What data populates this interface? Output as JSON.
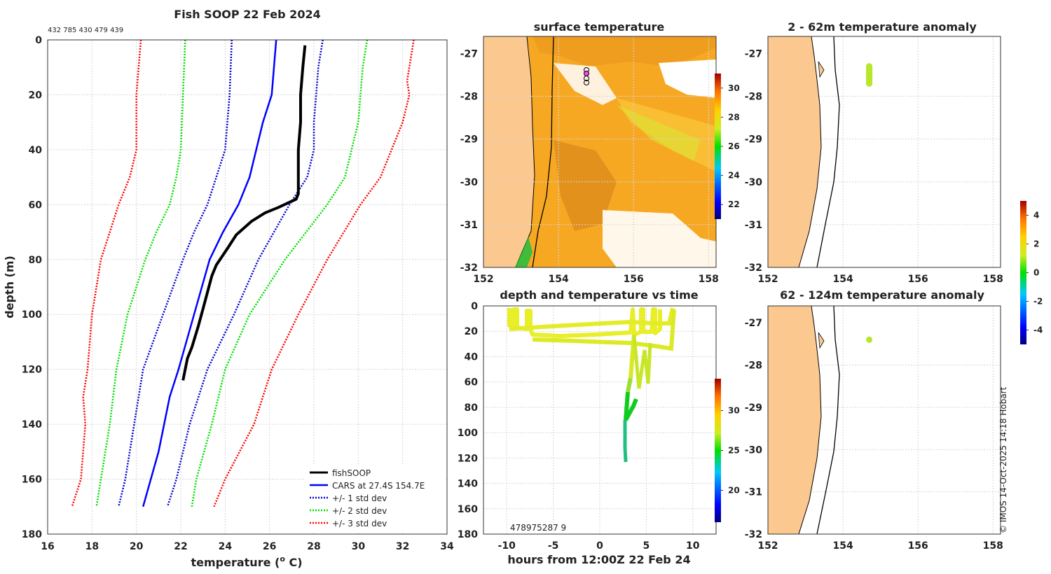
{
  "chart_data": [
    {
      "id": "profile",
      "type": "line",
      "title": "Fish SOOP 22 Feb 2024",
      "header_ids": "432 785 430 479 439",
      "xlabel": "temperature (",
      "xlabel_sup": "o",
      "xlabel_tail": " C)",
      "ylabel": "depth (m)",
      "xlim": [
        16,
        34
      ],
      "ylim": [
        180,
        0
      ],
      "xticks": [
        16,
        18,
        20,
        22,
        24,
        26,
        28,
        30,
        32,
        34
      ],
      "yticks": [
        0,
        20,
        40,
        60,
        80,
        100,
        120,
        140,
        160,
        180
      ],
      "series": [
        {
          "name": "+/- 3 std dev",
          "color": "#ff0000",
          "dash": true,
          "pts": [
            [
              20.2,
              0
            ],
            [
              20.0,
              20
            ],
            [
              20.0,
              40
            ],
            [
              19.7,
              50
            ],
            [
              19.2,
              60
            ],
            [
              18.8,
              70
            ],
            [
              18.4,
              80
            ],
            [
              18.0,
              100
            ],
            [
              17.8,
              120
            ],
            [
              17.6,
              130
            ],
            [
              17.7,
              140
            ],
            [
              17.5,
              160
            ],
            [
              17.1,
              170
            ]
          ]
        },
        {
          "name": "+/- 3 std dev",
          "color": "#ff0000",
          "dash": true,
          "pts": [
            [
              32.5,
              0
            ],
            [
              32.2,
              15
            ],
            [
              32.3,
              20
            ],
            [
              32.0,
              30
            ],
            [
              31.0,
              50
            ],
            [
              30.1,
              60
            ],
            [
              28.6,
              80
            ],
            [
              27.3,
              100
            ],
            [
              26.1,
              120
            ],
            [
              25.3,
              140
            ],
            [
              24.0,
              160
            ],
            [
              23.5,
              170
            ]
          ]
        },
        {
          "name": "+/- 2 std dev",
          "color": "#00dd00",
          "dash": true,
          "pts": [
            [
              22.2,
              0
            ],
            [
              22.1,
              20
            ],
            [
              22.0,
              40
            ],
            [
              21.8,
              50
            ],
            [
              21.5,
              60
            ],
            [
              20.9,
              70
            ],
            [
              20.4,
              80
            ],
            [
              19.6,
              100
            ],
            [
              19.1,
              120
            ],
            [
              18.8,
              140
            ],
            [
              18.4,
              160
            ],
            [
              18.2,
              170
            ]
          ]
        },
        {
          "name": "+/- 2 std dev",
          "color": "#00dd00",
          "dash": true,
          "pts": [
            [
              30.4,
              0
            ],
            [
              30.2,
              10
            ],
            [
              30.1,
              20
            ],
            [
              30.0,
              30
            ],
            [
              29.4,
              50
            ],
            [
              28.6,
              60
            ],
            [
              26.7,
              80
            ],
            [
              25.1,
              100
            ],
            [
              24.0,
              120
            ],
            [
              23.4,
              140
            ],
            [
              22.7,
              160
            ],
            [
              22.5,
              170
            ]
          ]
        },
        {
          "name": "+/- 1 std dev",
          "color": "#0000cc",
          "dash": true,
          "pts": [
            [
              24.3,
              0
            ],
            [
              24.2,
              20
            ],
            [
              24.0,
              40
            ],
            [
              23.6,
              50
            ],
            [
              23.2,
              60
            ],
            [
              22.6,
              70
            ],
            [
              22.1,
              80
            ],
            [
              21.2,
              100
            ],
            [
              20.3,
              120
            ],
            [
              19.9,
              140
            ],
            [
              19.5,
              160
            ],
            [
              19.2,
              170
            ]
          ]
        },
        {
          "name": "+/- 1 std dev",
          "color": "#0000cc",
          "dash": true,
          "pts": [
            [
              28.4,
              0
            ],
            [
              28.2,
              10
            ],
            [
              28.1,
              20
            ],
            [
              28.0,
              30
            ],
            [
              28.0,
              40
            ],
            [
              27.7,
              50
            ],
            [
              26.9,
              60
            ],
            [
              25.5,
              80
            ],
            [
              24.4,
              100
            ],
            [
              23.2,
              120
            ],
            [
              22.4,
              140
            ],
            [
              21.8,
              160
            ],
            [
              21.4,
              170
            ]
          ]
        },
        {
          "name": "CARS at 27.4S 154.7E",
          "color": "#0000ff",
          "dash": false,
          "pts": [
            [
              26.3,
              0
            ],
            [
              26.2,
              10
            ],
            [
              26.1,
              20
            ],
            [
              25.7,
              30
            ],
            [
              25.4,
              40
            ],
            [
              25.1,
              50
            ],
            [
              24.6,
              60
            ],
            [
              23.9,
              70
            ],
            [
              23.3,
              80
            ],
            [
              22.6,
              100
            ],
            [
              21.9,
              120
            ],
            [
              21.5,
              130
            ],
            [
              21.0,
              150
            ],
            [
              20.3,
              170
            ]
          ]
        },
        {
          "name": "fishSOOP",
          "color": "#000000",
          "dash": false,
          "lw": 4,
          "pts": [
            [
              27.6,
              2
            ],
            [
              27.5,
              10
            ],
            [
              27.4,
              20
            ],
            [
              27.4,
              30
            ],
            [
              27.3,
              40
            ],
            [
              27.3,
              50
            ],
            [
              27.3,
              56
            ],
            [
              27.2,
              58
            ],
            [
              26.4,
              61
            ],
            [
              25.8,
              63
            ],
            [
              25.2,
              66
            ],
            [
              24.5,
              71
            ],
            [
              24.1,
              76
            ],
            [
              23.6,
              82
            ],
            [
              23.4,
              86
            ],
            [
              23.2,
              92
            ],
            [
              23.0,
              98
            ],
            [
              22.8,
              104
            ],
            [
              22.5,
              112
            ],
            [
              22.3,
              116
            ],
            [
              22.1,
              124
            ]
          ]
        }
      ],
      "legend": [
        "fishSOOP",
        "CARS at 27.4S 154.7E",
        "+/- 1 std dev",
        "+/- 2 std dev",
        "+/- 3 std dev"
      ],
      "legend_position": "bottom-right"
    },
    {
      "id": "sst",
      "type": "heatmap",
      "title": "surface temperature",
      "xlim": [
        152,
        158.2
      ],
      "ylim": [
        -32,
        -26.6
      ],
      "xticks": [
        "152",
        "154",
        "156",
        "158"
      ],
      "yticks": [
        "-27",
        "-28",
        "-29",
        "-30",
        "-31",
        "-32"
      ],
      "colorbar": {
        "ticks": [
          "22",
          "24",
          "26",
          "28",
          "30"
        ],
        "range": [
          21,
          31
        ]
      }
    },
    {
      "id": "timeseries",
      "type": "scatter",
      "title": "depth and temperature vs time",
      "xlabel": "hours from 12:00Z 22 Feb 24",
      "xlim": [
        -12.5,
        12.5
      ],
      "ylim": [
        180,
        0
      ],
      "xticks": [
        "-10",
        "-5",
        "0",
        "5",
        "10"
      ],
      "yticks": [
        "0",
        "20",
        "40",
        "60",
        "80",
        "100",
        "120",
        "140",
        "160",
        "180"
      ],
      "overlay_ids": "478975287 9",
      "colorbar": {
        "ticks": [
          "20",
          "25",
          "30"
        ],
        "range": [
          16,
          34
        ]
      }
    },
    {
      "id": "anom_upper",
      "type": "scatter",
      "title": "2 - 62m temperature anomaly",
      "xlim": [
        152,
        158.2
      ],
      "ylim": [
        -32,
        -26.6
      ],
      "xticks": [
        "152",
        "154",
        "156",
        "158"
      ],
      "yticks": [
        "-27",
        "-28",
        "-29",
        "-30",
        "-31",
        "-32"
      ],
      "points": [
        {
          "lon": 154.7,
          "lat": -27.3
        },
        {
          "lon": 154.7,
          "lat": -27.7
        }
      ]
    },
    {
      "id": "anom_lower",
      "type": "scatter",
      "title": "62 - 124m temperature anomaly",
      "xlim": [
        152,
        158.2
      ],
      "ylim": [
        -32,
        -26.6
      ],
      "xticks": [
        "152",
        "154",
        "156",
        "158"
      ],
      "yticks": [
        "-27",
        "-28",
        "-29",
        "-30",
        "-31",
        "-32"
      ],
      "points": [
        {
          "lon": 154.7,
          "lat": -27.4
        }
      ],
      "colorbar": {
        "ticks": [
          "4",
          "2",
          "0",
          "-2",
          "-4"
        ],
        "range": [
          -5,
          5
        ]
      }
    }
  ],
  "credit": "© IMOS 14-Oct-2025 14:18 Hobart"
}
